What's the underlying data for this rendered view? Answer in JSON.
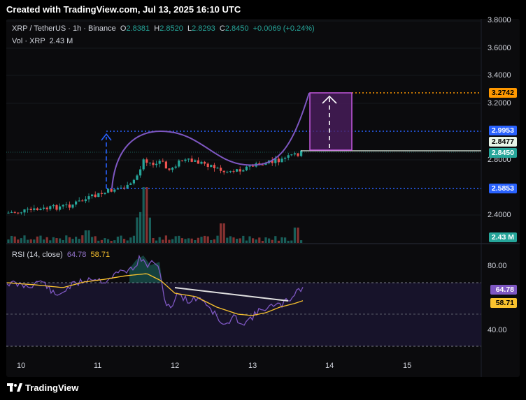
{
  "header": {
    "text": "Created with TradingView.com, Jul 13, 2025 16:10 UTC"
  },
  "legend": {
    "symbol": "XRP / TetherUS · 1h · Binance",
    "o_key": "O",
    "o": "2.8381",
    "h_key": "H",
    "h": "2.8520",
    "l_key": "L",
    "l": "2.8293",
    "c_key": "C",
    "c": "2.8450",
    "change": "+0.0069 (+0.24%)",
    "vol_label": "Vol · XRP",
    "vol_value": "2.43 M"
  },
  "price_axis": {
    "ticks": [
      "3.8000",
      "3.6000",
      "3.4000",
      "3.2000",
      "2.8000",
      "2.4000"
    ],
    "tags": {
      "target": "3.2742",
      "resist": "2.9953",
      "entry": "2.8477",
      "last": "2.8450",
      "support": "2.5853",
      "vol": "2.43 M"
    }
  },
  "rsi": {
    "label": "RSI (14, close)",
    "rsi_value": "64.78",
    "ma_value": "58.71",
    "ticks": [
      "80.00",
      "40.00"
    ]
  },
  "time_axis": {
    "ticks": [
      "10",
      "11",
      "12",
      "13",
      "14",
      "15"
    ]
  },
  "footer": {
    "brand": "TradingView"
  },
  "colors": {
    "up": "#26a69a",
    "down": "#ef5350",
    "blue": "#2962ff",
    "orange": "#ff9800",
    "purple": "#7e57c2",
    "rsi_ma": "#f9c22e",
    "green_tag": "#4caf50"
  }
}
